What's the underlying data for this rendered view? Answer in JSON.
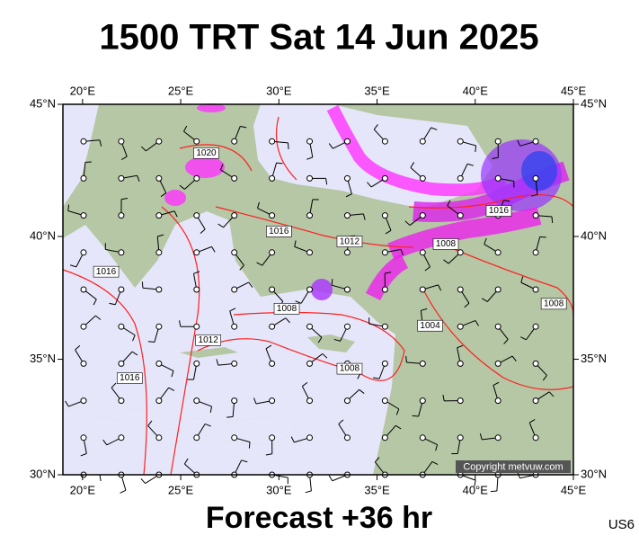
{
  "header": {
    "title": "1500 TRT Sat 14 Jun 2025"
  },
  "map": {
    "lonlim": [
      19,
      45
    ],
    "latlim": [
      30,
      45
    ],
    "xticks": [
      {
        "value": 20,
        "label": "20°E"
      },
      {
        "value": 25,
        "label": "25°E"
      },
      {
        "value": 30,
        "label": "30°E"
      },
      {
        "value": 35,
        "label": "35°E"
      },
      {
        "value": 40,
        "label": "40°E"
      },
      {
        "value": 45,
        "label": "45°E"
      }
    ],
    "yticks": [
      {
        "value": 30,
        "label": "30°N"
      },
      {
        "value": 35,
        "label": "35°N"
      },
      {
        "value": 40,
        "label": "40°N"
      },
      {
        "value": 45,
        "label": "45°N"
      }
    ],
    "isobars": [
      {
        "value": 1020,
        "lon": 26.3,
        "lat": 43.2
      },
      {
        "value": 1016,
        "lon": 30.0,
        "lat": 40.2
      },
      {
        "value": 1012,
        "lon": 33.6,
        "lat": 39.8
      },
      {
        "value": 1008,
        "lon": 30.4,
        "lat": 37.1
      },
      {
        "value": 1012,
        "lon": 26.4,
        "lat": 35.8
      },
      {
        "value": 1016,
        "lon": 22.4,
        "lat": 34.2
      },
      {
        "value": 1016,
        "lon": 21.2,
        "lat": 38.6
      },
      {
        "value": 1008,
        "lon": 33.6,
        "lat": 34.6
      },
      {
        "value": 1016,
        "lon": 41.2,
        "lat": 41.0
      },
      {
        "value": 1008,
        "lon": 38.5,
        "lat": 39.7
      },
      {
        "value": 1008,
        "lon": 44.0,
        "lat": 37.3
      },
      {
        "value": 1004,
        "lon": 37.7,
        "lat": 36.4
      }
    ]
  },
  "credit": "Copyright metvuw.com",
  "footer": {
    "forecast": "Forecast +36 hr",
    "code": "US6"
  }
}
